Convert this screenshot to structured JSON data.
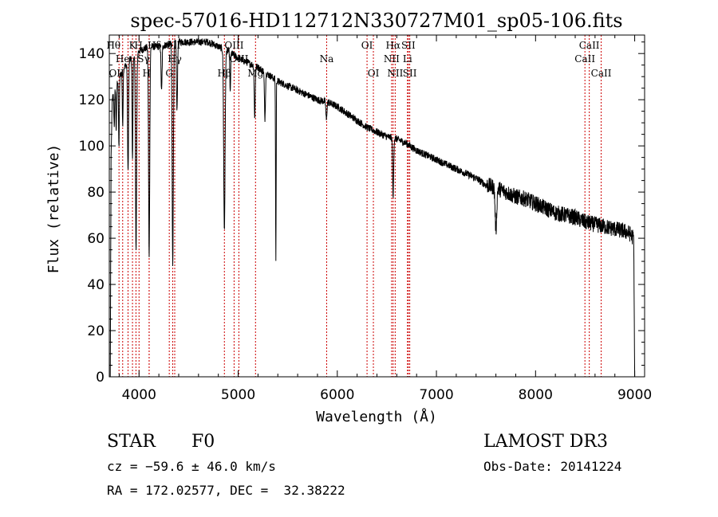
{
  "chart_data": {
    "type": "line",
    "title": "spec-57016-HD112712N330727M01_sp05-106.fits",
    "xlabel": "Wavelength (Å)",
    "ylabel": "Flux (relative)",
    "xlim": [
      3700,
      9100
    ],
    "ylim": [
      0,
      148
    ],
    "x_ticks": [
      4000,
      5000,
      6000,
      7000,
      8000,
      9000
    ],
    "y_ticks": [
      0,
      20,
      40,
      60,
      80,
      100,
      120,
      140
    ],
    "line_color": "#000000",
    "marker_color": "#cc0000",
    "grid": false,
    "series": [
      {
        "name": "flux",
        "continuum": [
          [
            3710,
            0
          ],
          [
            3718,
            95
          ],
          [
            3730,
            120
          ],
          [
            3760,
            126
          ],
          [
            3800,
            130
          ],
          [
            3850,
            134
          ],
          [
            3900,
            137
          ],
          [
            3950,
            139
          ],
          [
            4000,
            141
          ],
          [
            4050,
            142
          ],
          [
            4100,
            143
          ],
          [
            4150,
            143
          ],
          [
            4200,
            143
          ],
          [
            4300,
            144
          ],
          [
            4400,
            145
          ],
          [
            4500,
            145
          ],
          [
            4600,
            145
          ],
          [
            4700,
            145
          ],
          [
            4800,
            143
          ],
          [
            4900,
            141
          ],
          [
            5000,
            138
          ],
          [
            5100,
            136
          ],
          [
            5200,
            134
          ],
          [
            5300,
            131
          ],
          [
            5400,
            128
          ],
          [
            5500,
            126
          ],
          [
            5600,
            124
          ],
          [
            5700,
            122
          ],
          [
            5800,
            120
          ],
          [
            5900,
            119
          ],
          [
            6000,
            117
          ],
          [
            6100,
            114
          ],
          [
            6200,
            111
          ],
          [
            6300,
            108
          ],
          [
            6400,
            106
          ],
          [
            6500,
            104
          ],
          [
            6600,
            103
          ],
          [
            6700,
            101
          ],
          [
            6800,
            98
          ],
          [
            6900,
            96
          ],
          [
            7000,
            94
          ],
          [
            7100,
            92
          ],
          [
            7200,
            90
          ],
          [
            7300,
            88
          ],
          [
            7400,
            86
          ],
          [
            7500,
            83
          ],
          [
            7600,
            82
          ],
          [
            7700,
            80
          ],
          [
            7800,
            78
          ],
          [
            7900,
            77
          ],
          [
            8000,
            75
          ],
          [
            8100,
            73
          ],
          [
            8200,
            71
          ],
          [
            8300,
            70
          ],
          [
            8400,
            69
          ],
          [
            8500,
            67
          ],
          [
            8600,
            66
          ],
          [
            8700,
            65
          ],
          [
            8800,
            64
          ],
          [
            8900,
            63
          ],
          [
            8950,
            62
          ],
          [
            8990,
            60
          ],
          [
            9000,
            0
          ]
        ],
        "absorption_dips": [
          [
            3750,
            15,
            4
          ],
          [
            3770,
            20,
            4
          ],
          [
            3797,
            30,
            4
          ],
          [
            3835,
            25,
            4
          ],
          [
            3889,
            48,
            5
          ],
          [
            3934,
            45,
            4
          ],
          [
            3970,
            85,
            6
          ],
          [
            4102,
            90,
            6
          ],
          [
            4227,
            20,
            5
          ],
          [
            4340,
            95,
            6
          ],
          [
            4383,
            30,
            5
          ],
          [
            4861,
            78,
            7
          ],
          [
            4920,
            18,
            4
          ],
          [
            5167,
            22,
            5
          ],
          [
            5270,
            20,
            5
          ],
          [
            5380,
            78,
            3
          ],
          [
            5890,
            8,
            5
          ],
          [
            6563,
            26,
            5
          ],
          [
            7600,
            18,
            8
          ]
        ],
        "noise_amplitude": 1.6
      }
    ],
    "line_markers": [
      {
        "wavelength": 3798,
        "label": "Hθ",
        "row": 1,
        "side": "left"
      },
      {
        "wavelength": 3835,
        "label": "OII",
        "row": 3,
        "side": "left"
      },
      {
        "wavelength": 3889,
        "label": "He",
        "row": 2,
        "side": "left"
      },
      {
        "wavelength": 3934,
        "label": "K",
        "row": 1,
        "side": "center"
      },
      {
        "wavelength": 3969,
        "label": "H",
        "row": 1,
        "side": "right"
      },
      {
        "wavelength": 4000,
        "label": "Sγ",
        "row": 2,
        "side": "right"
      },
      {
        "wavelength": 4102,
        "label": "Hδ",
        "row": 1,
        "side": "right"
      },
      {
        "wavelength": 4102,
        "label": "H",
        "row": 3,
        "side": "left"
      },
      {
        "wavelength": 4305,
        "label": "G",
        "row": 3,
        "side": "center"
      },
      {
        "wavelength": 4340,
        "label": "OII",
        "row": 1,
        "side": "center"
      },
      {
        "wavelength": 4360,
        "label": "Hγ",
        "row": 2,
        "side": "center"
      },
      {
        "wavelength": 4861,
        "label": "Hβ",
        "row": 3,
        "side": "center"
      },
      {
        "wavelength": 4959,
        "label": "OIII",
        "row": 1,
        "side": "center"
      },
      {
        "wavelength": 5007,
        "label": "OIII",
        "row": 2,
        "side": "center"
      },
      {
        "wavelength": 5175,
        "label": "Mg",
        "row": 3,
        "side": "center"
      },
      {
        "wavelength": 5893,
        "label": "Na",
        "row": 2,
        "side": "center"
      },
      {
        "wavelength": 6300,
        "label": "OI",
        "row": 1,
        "side": "center"
      },
      {
        "wavelength": 6364,
        "label": "OI",
        "row": 3,
        "side": "center"
      },
      {
        "wavelength": 6548,
        "label": "NII",
        "row": 2,
        "side": "center"
      },
      {
        "wavelength": 6563,
        "label": "Hα",
        "row": 1,
        "side": "center"
      },
      {
        "wavelength": 6584,
        "label": "NII",
        "row": 3,
        "side": "center"
      },
      {
        "wavelength": 6717,
        "label": "SII",
        "row": 1,
        "side": "center"
      },
      {
        "wavelength": 6731,
        "label": "SII",
        "row": 3,
        "side": "center"
      },
      {
        "wavelength": 6708,
        "label": "Li",
        "row": 2,
        "side": "center"
      },
      {
        "wavelength": 8498,
        "label": "CaII",
        "row": 2,
        "side": "center"
      },
      {
        "wavelength": 8542,
        "label": "CaII",
        "row": 1,
        "side": "center"
      },
      {
        "wavelength": 8662,
        "label": "CaII",
        "row": 3,
        "side": "center"
      }
    ]
  },
  "info": {
    "object_type": "STAR",
    "subclass": "F0",
    "survey": "LAMOST DR3",
    "redshift_text": "cz = −59.6 ± 46.0 km/s",
    "obs_date_text": "Obs-Date: 20141224",
    "coords_text": "RA = 172.02577, DEC =  32.38222"
  }
}
